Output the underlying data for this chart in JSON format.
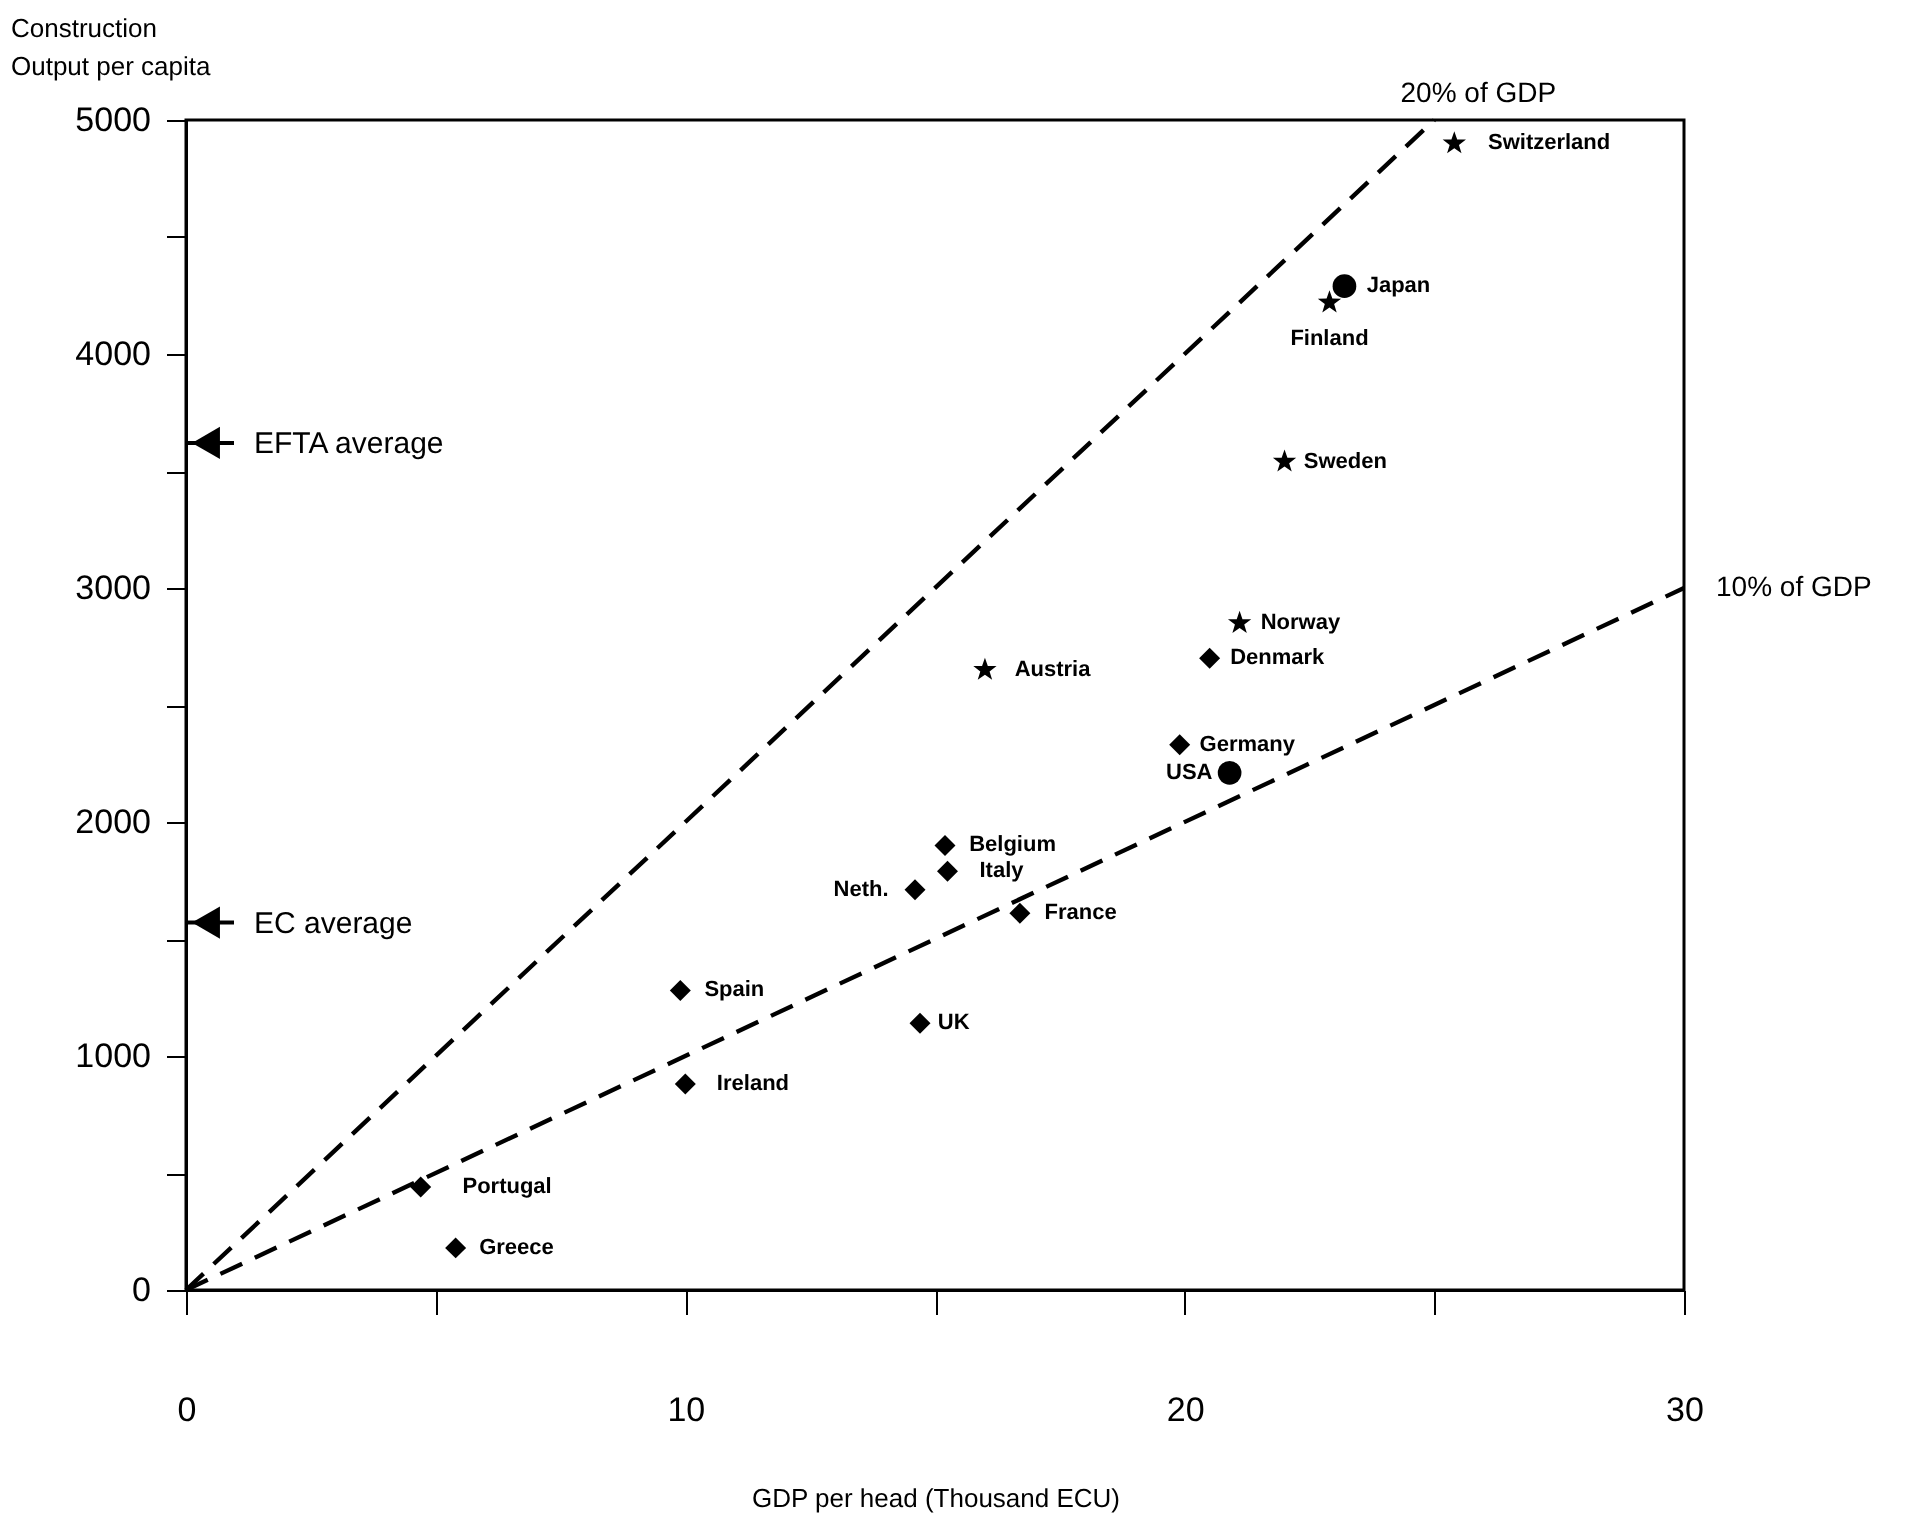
{
  "chart_data": {
    "type": "scatter",
    "xlabel": "GDP per head (Thousand ECU)",
    "ylabel": "Construction\nOutput per capita",
    "xlim": [
      0,
      30
    ],
    "ylim": [
      0,
      5000
    ],
    "xticks": [
      0,
      {
        "value": 5,
        "label": null
      },
      10,
      {
        "value": 15,
        "label": null
      },
      20,
      {
        "value": 25,
        "label": null
      },
      30
    ],
    "yticks": [
      0,
      {
        "value": 500,
        "label": null
      },
      1000,
      {
        "value": 1500,
        "label": null
      },
      2000,
      {
        "value": 2500,
        "label": null
      },
      3000,
      {
        "value": 3500,
        "label": null
      },
      4000,
      {
        "value": 4500,
        "label": null
      },
      5000
    ],
    "series": [
      {
        "color": "#000000",
        "marker": "star",
        "x": [
          25.4,
          22.9,
          22.0,
          21.1,
          16.0
        ],
        "values": [
          4900,
          4220,
          3540,
          2850,
          2650
        ]
      },
      {
        "color": "#000000",
        "marker": "diamond",
        "x": [
          20.5,
          19.9,
          15.2,
          15.25,
          14.6,
          16.7,
          14.7,
          9.9,
          10.0,
          4.7,
          5.4
        ],
        "values": [
          2700,
          2330,
          1900,
          1790,
          1710,
          1610,
          1140,
          1280,
          880,
          440,
          180
        ]
      },
      {
        "color": "#000000",
        "marker": "circle",
        "x": [
          23.2,
          20.9
        ],
        "values": [
          4290,
          2210
        ]
      },
      {
        "type": "line",
        "name": "20% of GDP",
        "color": "#000000",
        "line_style": "dashed",
        "x": [
          0,
          25
        ],
        "values": [
          0,
          5000
        ]
      },
      {
        "type": "line",
        "name": "10% of GDP",
        "color": "#000000",
        "line_style": "dashed",
        "x": [
          0,
          30
        ],
        "values": [
          0,
          3000
        ]
      }
    ],
    "ref_lines": [
      {
        "axis": "y",
        "value": 3620,
        "label": "EFTA average",
        "color": "#000000"
      },
      {
        "axis": "y",
        "value": 1570,
        "label": "EC average",
        "color": "#000000"
      }
    ],
    "annotations": [
      {
        "text": "Switzerland",
        "x": 25.4,
        "y": 4900
      },
      {
        "text": "Japan",
        "x": 23.2,
        "y": 4290
      },
      {
        "text": "Finland",
        "x": 22.9,
        "y": 4220
      },
      {
        "text": "Sweden",
        "x": 22.0,
        "y": 3540
      },
      {
        "text": "Norway",
        "x": 21.1,
        "y": 2850
      },
      {
        "text": "Denmark",
        "x": 20.5,
        "y": 2700
      },
      {
        "text": "Austria",
        "x": 16.0,
        "y": 2650
      },
      {
        "text": "Germany",
        "x": 19.9,
        "y": 2330
      },
      {
        "text": "USA",
        "x": 20.9,
        "y": 2210
      },
      {
        "text": "Belgium",
        "x": 15.2,
        "y": 1900
      },
      {
        "text": "Italy",
        "x": 15.25,
        "y": 1790
      },
      {
        "text": "Neth.",
        "x": 14.6,
        "y": 1710
      },
      {
        "text": "France",
        "x": 16.7,
        "y": 1610
      },
      {
        "text": "UK",
        "x": 14.7,
        "y": 1140
      },
      {
        "text": "Spain",
        "x": 9.9,
        "y": 1280
      },
      {
        "text": "Ireland",
        "x": 10.0,
        "y": 880
      },
      {
        "text": "Portugal",
        "x": 4.7,
        "y": 440
      },
      {
        "text": "Greece",
        "x": 5.4,
        "y": 180
      }
    ]
  }
}
